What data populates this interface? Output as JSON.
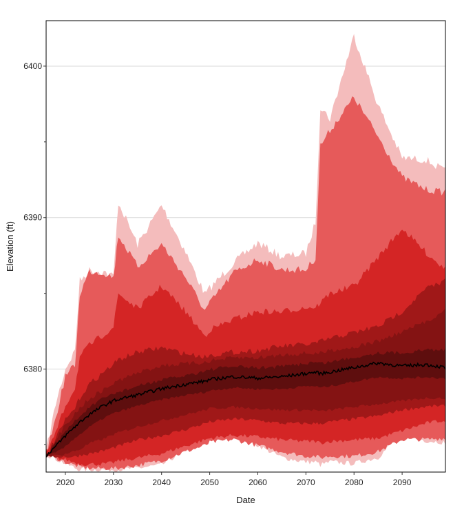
{
  "chart_data": {
    "type": "area",
    "title": "",
    "xlabel": "Date",
    "ylabel": "Elevation (ft)",
    "xlim": [
      2016,
      2099
    ],
    "ylim": [
      6373.2,
      6403
    ],
    "x_ticks": [
      2020,
      2030,
      2040,
      2050,
      2060,
      2070,
      2080,
      2090
    ],
    "y_ticks": [
      6380,
      6390,
      6400
    ],
    "y_minor_ticks": [
      6375,
      6385,
      6395
    ],
    "grid": "horizontal at major y ticks",
    "legend": "none",
    "colors": {
      "band_outer": "#f4bcbc",
      "band_2": "#e65a5a",
      "band_3": "#d42525",
      "band_4": "#a01818",
      "band_5": "#841313",
      "band_6": "#5e0e0e",
      "median_line": "#000000",
      "grid": "#d9d9d9",
      "background": "#ffffff"
    },
    "x": [
      2016,
      2018,
      2020,
      2022,
      2023,
      2025,
      2028,
      2030,
      2031,
      2035,
      2040,
      2045,
      2049,
      2050,
      2055,
      2060,
      2065,
      2070,
      2072,
      2073,
      2075,
      2080,
      2085,
      2090,
      2095,
      2099
    ],
    "median": [
      6374.3,
      6374.9,
      6375.6,
      6376.2,
      6376.5,
      6377.0,
      6377.6,
      6377.9,
      6378.0,
      6378.3,
      6378.7,
      6379.0,
      6379.2,
      6379.3,
      6379.5,
      6379.4,
      6379.5,
      6379.7,
      6379.8,
      6379.7,
      6379.8,
      6380.1,
      6380.4,
      6380.2,
      6380.3,
      6380.1
    ],
    "bands": [
      {
        "upper": [
          6374.8,
          6378.0,
          6380.3,
          6381.5,
          6386.1,
          6386.8,
          6386.7,
          6386.4,
          6391.3,
          6388.5,
          6391.1,
          6388.0,
          6385.2,
          6385.6,
          6387.3,
          6388.6,
          6387.7,
          6387.9,
          6390.0,
          6397.6,
          6396.8,
          6402.3,
          6397.7,
          6394.2,
          6394.1,
          6393.3
        ],
        "lower": [
          6374.2,
          6373.9,
          6373.6,
          6373.3,
          6373.2,
          6373.2,
          6373.2,
          6373.2,
          6373.2,
          6373.3,
          6373.5,
          6374.5,
          6375.0,
          6375.3,
          6375.7,
          6374.8,
          6374.0,
          6373.7,
          6373.7,
          6373.5,
          6373.7,
          6373.6,
          6374.0,
          6375.6,
          6375.1,
          6375.0
        ]
      },
      {
        "upper": [
          6374.7,
          6377.0,
          6379.8,
          6380.5,
          6385.2,
          6386.7,
          6386.6,
          6386.3,
          6389.1,
          6387.0,
          6388.5,
          6386.3,
          6384.1,
          6384.6,
          6386.6,
          6387.5,
          6386.8,
          6386.8,
          6387.6,
          6395.0,
          6396.0,
          6398.2,
          6395.6,
          6392.9,
          6392.1,
          6391.9
        ],
        "lower": [
          6374.2,
          6374.0,
          6373.7,
          6373.5,
          6373.4,
          6373.3,
          6373.3,
          6373.3,
          6373.3,
          6373.5,
          6373.8,
          6374.4,
          6374.8,
          6375.0,
          6375.2,
          6374.8,
          6374.4,
          6374.1,
          6374.1,
          6374.0,
          6374.1,
          6374.1,
          6374.4,
          6375.2,
          6375.2,
          6375.3
        ]
      },
      {
        "upper": [
          6374.6,
          6376.0,
          6377.8,
          6379.0,
          6381.0,
          6381.8,
          6382.5,
          6383.0,
          6385.2,
          6384.2,
          6385.7,
          6384.0,
          6382.4,
          6382.8,
          6383.5,
          6384.0,
          6384.0,
          6384.3,
          6384.3,
          6384.6,
          6385.2,
          6385.7,
          6387.6,
          6389.5,
          6387.9,
          6386.8
        ],
        "lower": [
          6374.2,
          6374.0,
          6373.9,
          6373.7,
          6373.6,
          6373.6,
          6373.6,
          6373.7,
          6373.8,
          6374.0,
          6374.3,
          6374.8,
          6375.2,
          6375.3,
          6375.5,
          6375.4,
          6375.2,
          6375.1,
          6375.1,
          6375.0,
          6375.1,
          6375.2,
          6375.3,
          6375.8,
          6376.3,
          6376.5
        ]
      },
      {
        "upper": [
          6374.5,
          6375.6,
          6376.8,
          6377.6,
          6378.3,
          6379.2,
          6380.0,
          6380.5,
          6380.8,
          6381.3,
          6381.6,
          6381.2,
          6381.0,
          6381.1,
          6381.3,
          6381.4,
          6381.7,
          6381.8,
          6381.9,
          6382.0,
          6382.2,
          6382.6,
          6383.0,
          6384.0,
          6385.5,
          6386.0
        ],
        "lower": [
          6374.2,
          6374.1,
          6374.1,
          6374.1,
          6374.2,
          6374.3,
          6374.5,
          6374.7,
          6374.8,
          6375.2,
          6375.5,
          6375.9,
          6376.3,
          6376.4,
          6376.6,
          6376.5,
          6376.3,
          6376.3,
          6376.3,
          6376.3,
          6376.4,
          6376.6,
          6376.8,
          6377.2,
          6377.4,
          6377.5
        ]
      },
      {
        "upper": [
          6374.4,
          6375.4,
          6376.5,
          6377.2,
          6377.6,
          6378.2,
          6378.8,
          6379.2,
          6379.4,
          6379.9,
          6380.4,
          6380.5,
          6380.6,
          6380.7,
          6380.9,
          6380.9,
          6381.1,
          6381.2,
          6381.2,
          6381.2,
          6381.4,
          6381.6,
          6382.0,
          6382.6,
          6383.3,
          6384.0
        ],
        "lower": [
          6374.2,
          6374.2,
          6374.3,
          6374.5,
          6374.6,
          6375.0,
          6375.3,
          6375.6,
          6375.7,
          6376.1,
          6376.5,
          6376.9,
          6377.2,
          6377.3,
          6377.4,
          6377.3,
          6377.2,
          6377.2,
          6377.2,
          6377.1,
          6377.2,
          6377.4,
          6377.6,
          6377.8,
          6378.0,
          6378.0
        ]
      },
      {
        "upper": [
          6374.4,
          6375.2,
          6376.0,
          6376.7,
          6377.0,
          6377.6,
          6378.2,
          6378.5,
          6378.6,
          6379.0,
          6379.4,
          6379.7,
          6380.0,
          6380.1,
          6380.3,
          6380.2,
          6380.3,
          6380.5,
          6380.6,
          6380.5,
          6380.6,
          6380.9,
          6381.2,
          6381.2,
          6381.4,
          6381.4
        ],
        "lower": [
          6374.2,
          6374.4,
          6374.8,
          6375.4,
          6375.6,
          6376.1,
          6376.7,
          6377.0,
          6377.1,
          6377.5,
          6377.9,
          6378.2,
          6378.4,
          6378.5,
          6378.7,
          6378.6,
          6378.6,
          6378.8,
          6378.8,
          6378.7,
          6378.8,
          6379.1,
          6379.4,
          6379.3,
          6379.4,
          6379.3
        ]
      }
    ]
  }
}
